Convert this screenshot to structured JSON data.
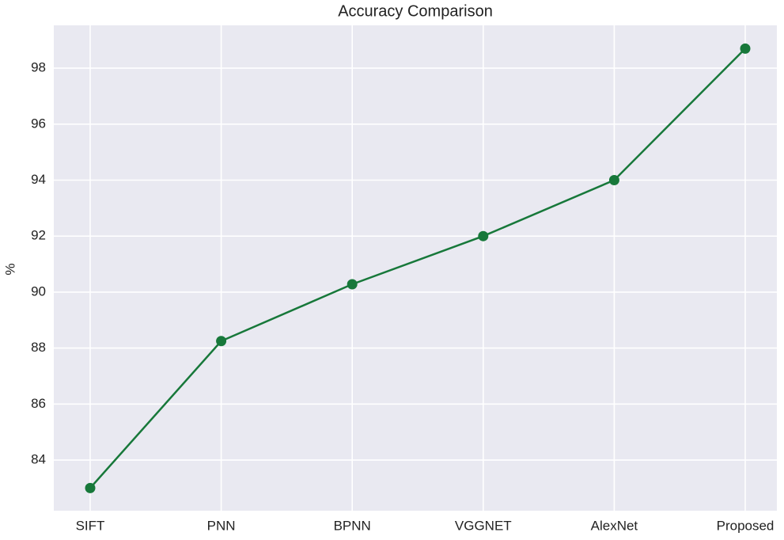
{
  "chart_data": {
    "type": "line",
    "title": "Accuracy Comparison",
    "y_label": "%",
    "categories": [
      "SIFT",
      "PNN",
      "BPNN",
      "VGGNET",
      "AlexNet",
      "Proposed"
    ],
    "series": [
      {
        "color": "#17783a",
        "values": [
          83.0,
          88.25,
          90.28,
          92.0,
          94.0,
          98.7
        ]
      }
    ],
    "ylim": [
      82.19,
      99.53
    ],
    "yticks": [
      84,
      86,
      88,
      90,
      92,
      94,
      96,
      98
    ],
    "grid": true
  }
}
